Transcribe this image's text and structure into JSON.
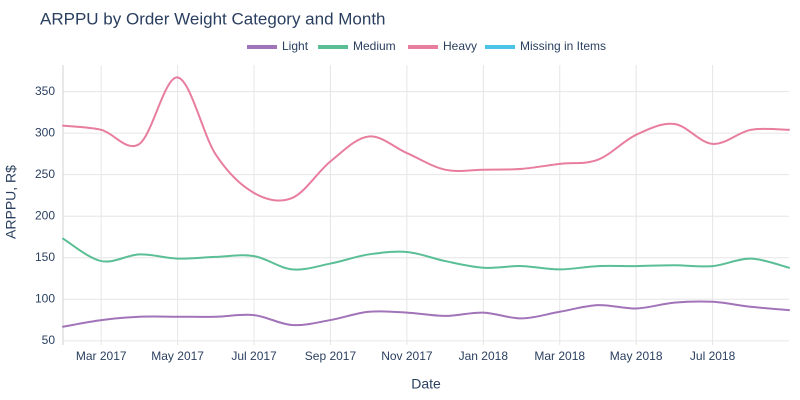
{
  "chart_data": {
    "type": "line",
    "title": "ARPPU by Order Weight Category and Month",
    "x_label": "Date",
    "y_label": "ARPPU, R$",
    "categories": [
      null,
      "Mar 2017",
      null,
      "May 2017",
      null,
      "Jul 2017",
      null,
      "Sep 2017",
      null,
      "Nov 2017",
      null,
      "Jan 2018",
      null,
      "Mar 2018",
      null,
      "May 2018",
      null,
      "Jul 2018",
      null,
      null
    ],
    "series": [
      {
        "name": "Light",
        "color": "#a173b8",
        "values": [
          67,
          75,
          79,
          79,
          79,
          81,
          69,
          75,
          85,
          84,
          80,
          84,
          77,
          85,
          93,
          89,
          96,
          97,
          91,
          87
        ]
      },
      {
        "name": "Medium",
        "color": "#5bbf95",
        "values": [
          173,
          146,
          154,
          149,
          151,
          152,
          136,
          143,
          154,
          157,
          146,
          138,
          140,
          136,
          140,
          140,
          141,
          140,
          149,
          138
        ]
      },
      {
        "name": "Heavy",
        "color": "#e87d9e",
        "values": [
          309,
          304,
          287,
          367,
          274,
          228,
          222,
          266,
          296,
          276,
          256,
          256,
          257,
          263,
          268,
          298,
          311,
          287,
          304,
          304
        ]
      },
      {
        "name": "Missing in Items",
        "color": "#4dc3e8",
        "values": [
          null,
          null,
          null,
          null,
          null,
          null,
          null,
          null,
          null,
          null,
          null,
          null,
          null,
          null,
          null,
          null,
          null,
          null,
          null,
          null
        ]
      }
    ],
    "ylim": [
      45,
      382
    ],
    "yticks": [
      50,
      100,
      150,
      200,
      250,
      300,
      350
    ],
    "grid": true,
    "legend": "top"
  }
}
